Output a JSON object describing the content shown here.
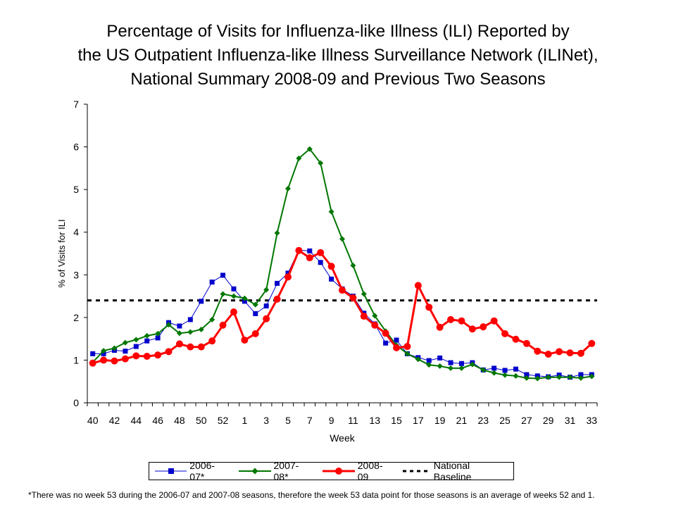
{
  "title": {
    "line1": "Percentage of Visits for Influenza-like Illness (ILI) Reported by",
    "line2": "the US Outpatient Influenza-like Illness Surveillance Network (ILINet),",
    "line3": "National Summary 2008-09 and Previous Two Seasons"
  },
  "footnote": "*There was no week 53 during the 2006-07 and 2007-08 seasons, therefore the week 53 data point for those seasons is an average of weeks 52 and 1.",
  "chart_data": {
    "type": "line",
    "xlabel": "Week",
    "ylabel": "% of Visits for ILI",
    "ylim": [
      0,
      7
    ],
    "yticks": [
      "0",
      "1",
      "2",
      "3",
      "4",
      "5",
      "6",
      "7"
    ],
    "x": [
      "40",
      "41",
      "42",
      "43",
      "44",
      "45",
      "46",
      "47",
      "48",
      "49",
      "50",
      "51",
      "52",
      "53",
      "1",
      "2",
      "3",
      "4",
      "5",
      "6",
      "7",
      "8",
      "9",
      "10",
      "11",
      "12",
      "13",
      "14",
      "15",
      "16",
      "17",
      "18",
      "19",
      "20",
      "21",
      "22",
      "23",
      "24",
      "25",
      "26",
      "27",
      "28",
      "29",
      "30",
      "31",
      "32",
      "33"
    ],
    "xtick_labels": [
      "40",
      "42",
      "44",
      "46",
      "48",
      "50",
      "52",
      "1",
      "3",
      "5",
      "7",
      "9",
      "11",
      "13",
      "15",
      "17",
      "19",
      "21",
      "23",
      "25",
      "27",
      "29",
      "31",
      "33"
    ],
    "baseline": {
      "name": "National Baseline",
      "value": 2.4,
      "color": "#000000"
    },
    "legend_position": "bottom",
    "grid": false,
    "series": [
      {
        "name": "2006-07*",
        "color": "#0000cc",
        "marker": "square",
        "values": [
          1.15,
          1.15,
          1.23,
          1.21,
          1.32,
          1.45,
          1.52,
          1.88,
          1.8,
          1.95,
          2.38,
          2.83,
          2.99,
          2.67,
          2.38,
          2.09,
          2.27,
          2.8,
          3.04,
          3.58,
          3.56,
          3.29,
          2.9,
          2.67,
          2.5,
          2.1,
          1.85,
          1.4,
          1.47,
          1.15,
          1.06,
          0.99,
          1.05,
          0.94,
          0.92,
          0.94,
          0.77,
          0.81,
          0.76,
          0.79,
          0.66,
          0.63,
          0.61,
          0.65,
          0.6,
          0.66,
          0.66
        ]
      },
      {
        "name": "2007-08*",
        "color": "#007700",
        "marker": "diamond",
        "values": [
          0.95,
          1.22,
          1.28,
          1.41,
          1.48,
          1.57,
          1.62,
          1.83,
          1.63,
          1.66,
          1.72,
          1.95,
          2.55,
          2.5,
          2.45,
          2.3,
          2.65,
          3.98,
          5.02,
          5.73,
          5.95,
          5.62,
          4.48,
          3.84,
          3.22,
          2.55,
          2.04,
          1.68,
          1.35,
          1.15,
          1.02,
          0.89,
          0.86,
          0.81,
          0.81,
          0.9,
          0.77,
          0.7,
          0.65,
          0.63,
          0.58,
          0.57,
          0.6,
          0.6,
          0.6,
          0.58,
          0.62
        ]
      },
      {
        "name": "2008-09",
        "color": "#ff0000",
        "marker": "circle",
        "values": [
          0.93,
          1.0,
          0.98,
          1.03,
          1.1,
          1.09,
          1.12,
          1.2,
          1.38,
          1.31,
          1.31,
          1.45,
          1.82,
          2.13,
          1.47,
          1.62,
          1.97,
          2.43,
          2.95,
          3.57,
          3.4,
          3.52,
          3.2,
          2.64,
          2.46,
          2.03,
          1.82,
          1.63,
          1.29,
          1.32,
          2.75,
          2.24,
          1.77,
          1.95,
          1.92,
          1.73,
          1.78,
          1.92,
          1.62,
          1.49,
          1.39,
          1.21,
          1.14,
          1.2,
          1.17,
          1.16,
          1.39
        ]
      }
    ]
  }
}
